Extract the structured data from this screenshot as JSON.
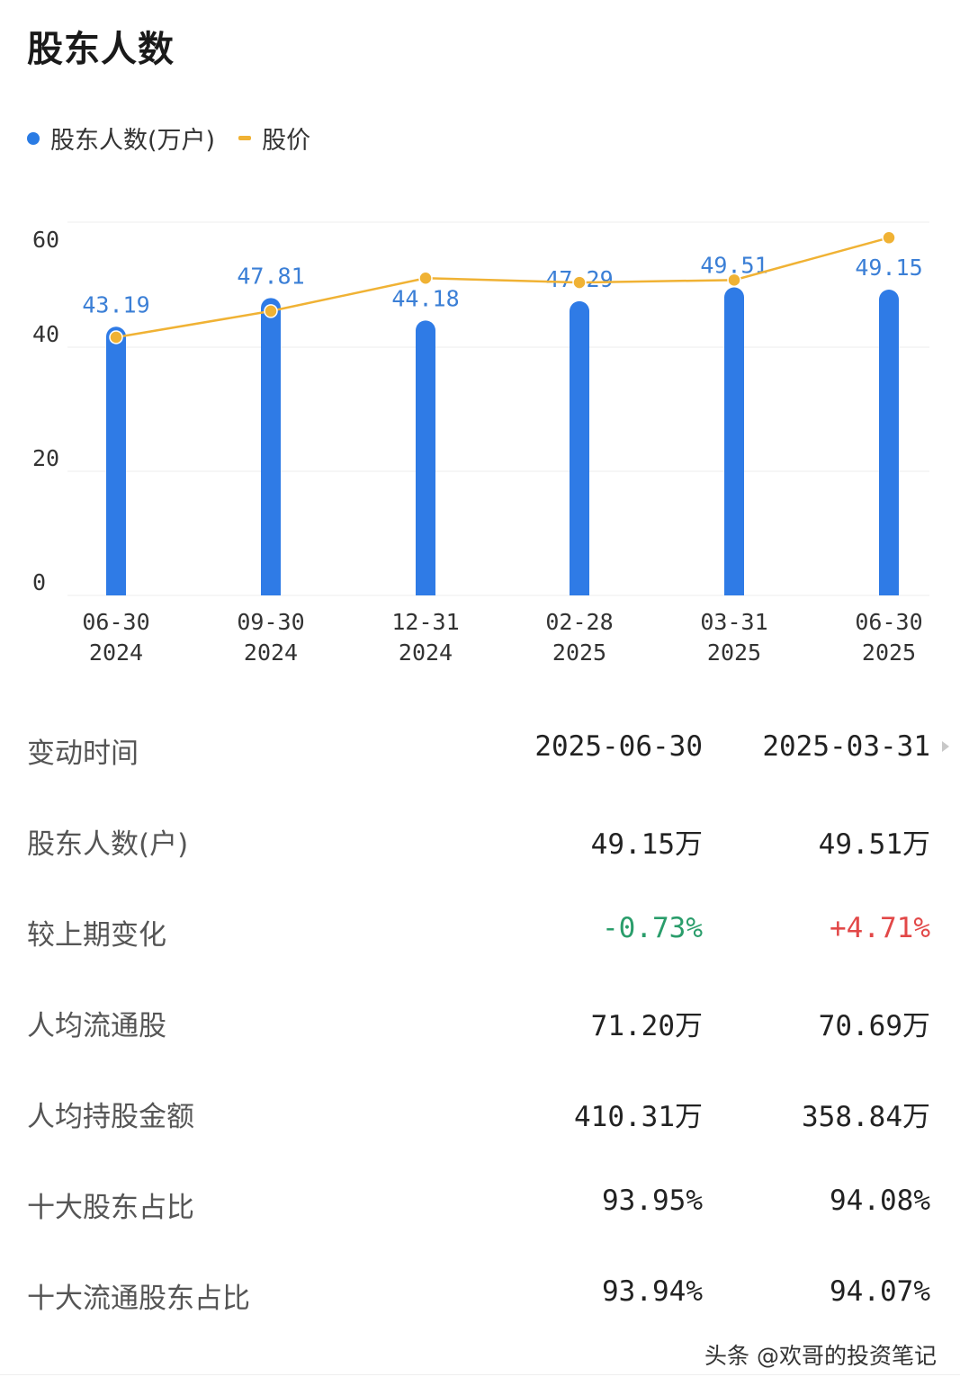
{
  "title": "股东人数",
  "legend": {
    "holders": "股东人数(万户)",
    "price": "股价"
  },
  "colors": {
    "bar": "#2f7be6",
    "line": "#f0b234",
    "up": "#e24848",
    "down": "#2a9d6b"
  },
  "chart_data": {
    "type": "bar",
    "categories": [
      [
        "06-30",
        "2024"
      ],
      [
        "09-30",
        "2024"
      ],
      [
        "12-31",
        "2024"
      ],
      [
        "02-28",
        "2025"
      ],
      [
        "03-31",
        "2025"
      ],
      [
        "06-30",
        "2025"
      ]
    ],
    "series": [
      {
        "name": "股东人数(万户)",
        "type": "bar",
        "values": [
          43.19,
          47.81,
          44.18,
          47.29,
          49.51,
          49.15
        ],
        "labels": [
          "43.19",
          "47.81",
          "44.18",
          "47.29",
          "49.51",
          "49.15"
        ]
      },
      {
        "name": "股价",
        "type": "line",
        "values": [
          41.5,
          45.7,
          51.0,
          50.3,
          50.7,
          57.5
        ]
      }
    ],
    "yticks": [
      "0",
      "20",
      "40",
      "60"
    ],
    "ylim": [
      0,
      60
    ]
  },
  "table": {
    "header": {
      "label": "变动时间",
      "c1": "2025-06-30",
      "c2": "2025-03-31"
    },
    "rows": [
      {
        "label": "股东人数(户)",
        "c1": "49.15万",
        "c2": "49.51万"
      },
      {
        "label": "较上期变化",
        "c1": "-0.73%",
        "c2": "+4.71%"
      },
      {
        "label": "人均流通股",
        "c1": "71.20万",
        "c2": "70.69万"
      },
      {
        "label": "人均持股金额",
        "c1": "410.31万",
        "c2": "358.84万"
      },
      {
        "label": "十大股东占比",
        "c1": "93.95%",
        "c2": "94.08%"
      },
      {
        "label": "十大流通股东占比",
        "c1": "93.94%",
        "c2": "94.07%"
      }
    ]
  },
  "watermark": "头条 @欢哥的投资笔记"
}
